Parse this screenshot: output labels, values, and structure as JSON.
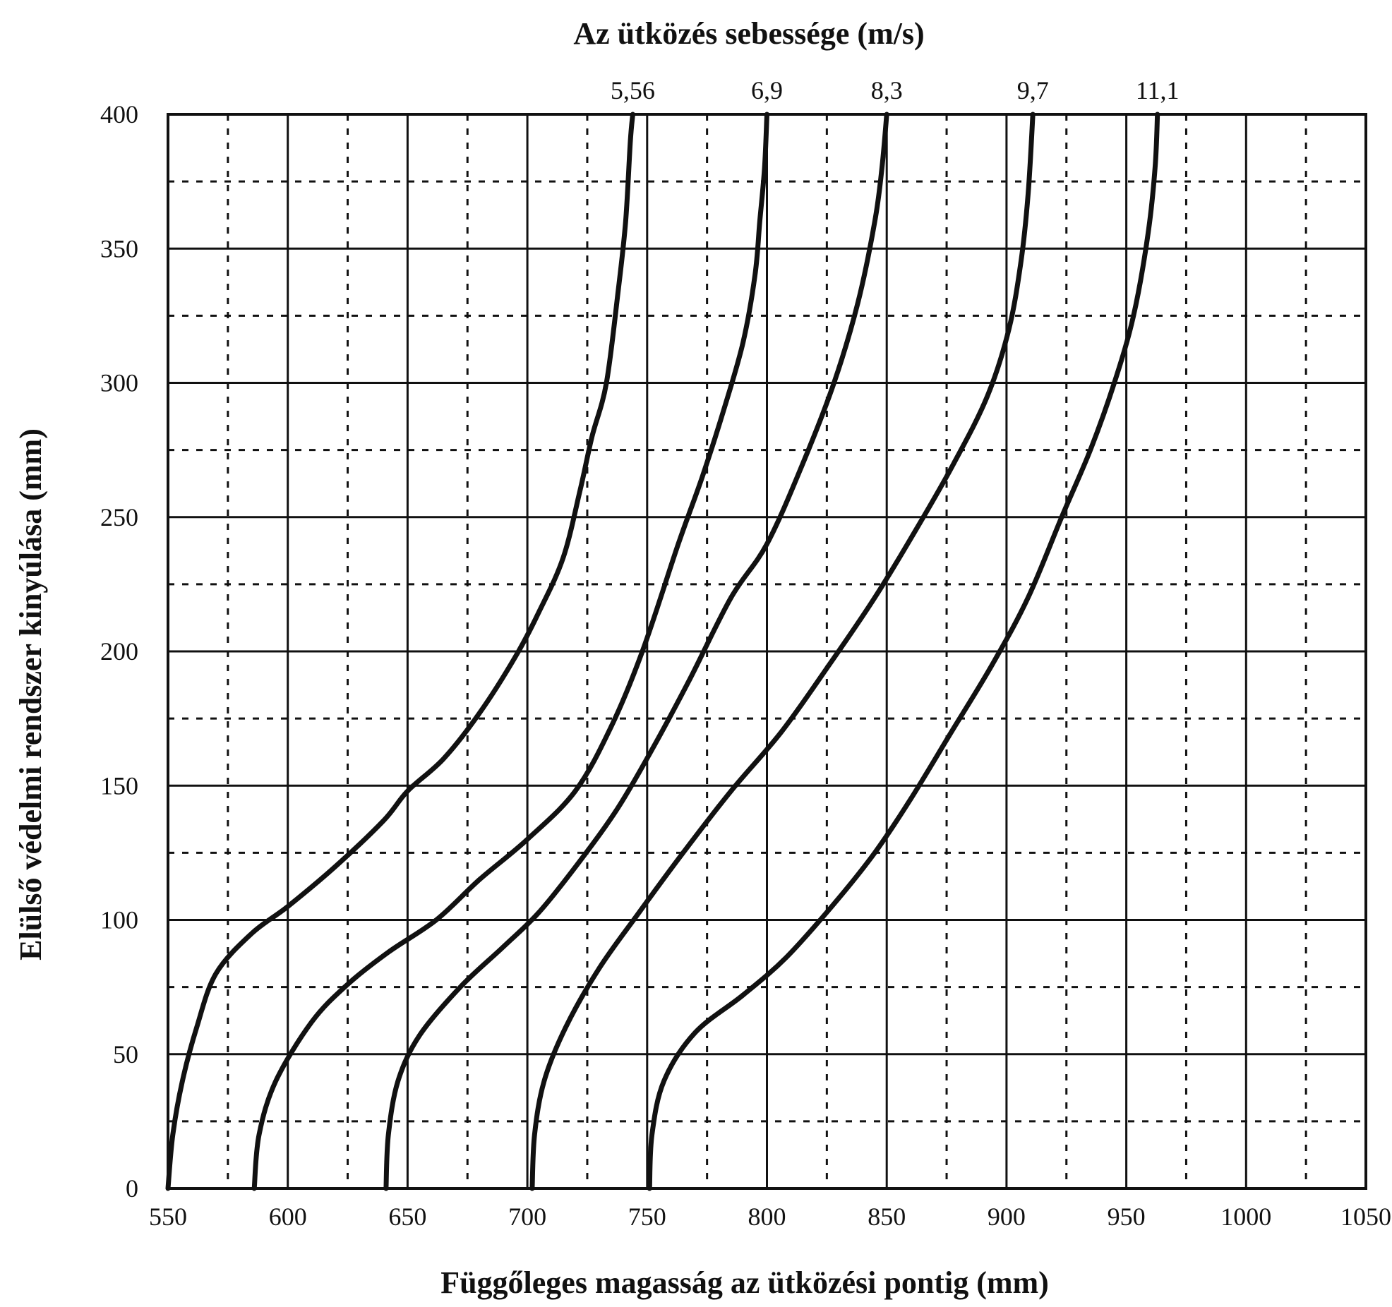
{
  "chart_data": {
    "type": "line",
    "title": "Az ütközés sebessége (m/s)",
    "xlabel": "Függőleges magasság az ütközési pontig (mm)",
    "ylabel": "Elülső védelmi rendszer kinyúlása (mm)",
    "xlim": [
      550,
      1050
    ],
    "ylim": [
      0,
      400
    ],
    "x_ticks": [
      "550",
      "600",
      "650",
      "700",
      "750",
      "800",
      "850",
      "900",
      "950",
      "1000",
      "1050"
    ],
    "y_ticks": [
      "0",
      "50",
      "100",
      "150",
      "200",
      "250",
      "300",
      "350",
      "400"
    ],
    "x_major_step": 50,
    "x_minor_step": 25,
    "y_major_step": 50,
    "y_minor_step": 25,
    "grid": true,
    "series": [
      {
        "name": "5,56",
        "points": [
          [
            550,
            0
          ],
          [
            552,
            20
          ],
          [
            556,
            40
          ],
          [
            562,
            60
          ],
          [
            570,
            80
          ],
          [
            585,
            95
          ],
          [
            600,
            105
          ],
          [
            620,
            120
          ],
          [
            640,
            137
          ],
          [
            650,
            148
          ],
          [
            665,
            160
          ],
          [
            680,
            177
          ],
          [
            695,
            198
          ],
          [
            705,
            215
          ],
          [
            715,
            235
          ],
          [
            722,
            260
          ],
          [
            727,
            280
          ],
          [
            733,
            300
          ],
          [
            738,
            335
          ],
          [
            741,
            360
          ],
          [
            743,
            390
          ],
          [
            744,
            400
          ]
        ]
      },
      {
        "name": "6,9",
        "points": [
          [
            586,
            0
          ],
          [
            588,
            20
          ],
          [
            595,
            40
          ],
          [
            610,
            62
          ],
          [
            625,
            76
          ],
          [
            642,
            88
          ],
          [
            662,
            100
          ],
          [
            680,
            115
          ],
          [
            700,
            130
          ],
          [
            720,
            148
          ],
          [
            735,
            172
          ],
          [
            748,
            200
          ],
          [
            763,
            240
          ],
          [
            773,
            265
          ],
          [
            782,
            290
          ],
          [
            790,
            315
          ],
          [
            795,
            340
          ],
          [
            797,
            360
          ],
          [
            799,
            380
          ],
          [
            800,
            400
          ]
        ]
      },
      {
        "name": "8,3",
        "points": [
          [
            641,
            0
          ],
          [
            642,
            20
          ],
          [
            646,
            40
          ],
          [
            655,
            57
          ],
          [
            672,
            75
          ],
          [
            690,
            90
          ],
          [
            705,
            103
          ],
          [
            722,
            122
          ],
          [
            738,
            142
          ],
          [
            753,
            165
          ],
          [
            768,
            190
          ],
          [
            785,
            220
          ],
          [
            800,
            240
          ],
          [
            815,
            270
          ],
          [
            828,
            300
          ],
          [
            838,
            330
          ],
          [
            845,
            360
          ],
          [
            848,
            380
          ],
          [
            850,
            400
          ]
        ]
      },
      {
        "name": "9,7",
        "points": [
          [
            702,
            0
          ],
          [
            703,
            20
          ],
          [
            707,
            40
          ],
          [
            716,
            60
          ],
          [
            730,
            82
          ],
          [
            746,
            102
          ],
          [
            765,
            125
          ],
          [
            785,
            148
          ],
          [
            806,
            170
          ],
          [
            826,
            195
          ],
          [
            845,
            220
          ],
          [
            862,
            245
          ],
          [
            878,
            270
          ],
          [
            892,
            295
          ],
          [
            901,
            320
          ],
          [
            906,
            345
          ],
          [
            909,
            370
          ],
          [
            911,
            400
          ]
        ]
      },
      {
        "name": "11,1",
        "points": [
          [
            751,
            0
          ],
          [
            752,
            20
          ],
          [
            757,
            40
          ],
          [
            770,
            58
          ],
          [
            790,
            72
          ],
          [
            808,
            86
          ],
          [
            828,
            106
          ],
          [
            845,
            125
          ],
          [
            860,
            145
          ],
          [
            877,
            170
          ],
          [
            894,
            195
          ],
          [
            909,
            220
          ],
          [
            923,
            250
          ],
          [
            935,
            275
          ],
          [
            945,
            300
          ],
          [
            953,
            325
          ],
          [
            959,
            355
          ],
          [
            962,
            380
          ],
          [
            963,
            400
          ]
        ]
      }
    ]
  }
}
